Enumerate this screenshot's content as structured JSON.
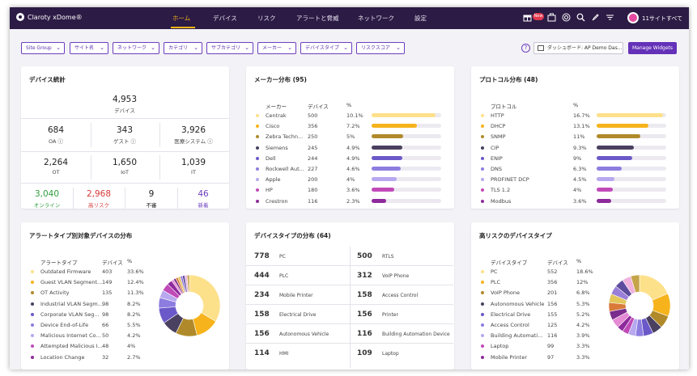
{
  "nav": {
    "logo": "Claroty xDome®",
    "menu": [
      "ホーム",
      "デバイス",
      "リスク",
      "アラートと脅威",
      "ネットワーク",
      "設定"
    ],
    "new_badge": "New",
    "site_label": "11サイトすべて"
  },
  "filters": {
    "chips": [
      "Site Group",
      "サイト名",
      "ネットワーク",
      "カテゴリ",
      "サブカテゴリ",
      "メーカー",
      "デバイスタイプ",
      "リスクスコア"
    ],
    "dashboard_label": "ダッシュボード: AP Demo Das...",
    "manage_widgets": "Manage Widgets"
  },
  "device_stats": {
    "title": "デバイス統計",
    "total": {
      "value": "4,953",
      "label": "デバイス"
    },
    "row1": [
      {
        "value": "684",
        "label": "OA"
      },
      {
        "value": "343",
        "label": "ゲスト"
      },
      {
        "value": "3,926",
        "label": "医療システム"
      }
    ],
    "row2": [
      {
        "value": "2,264",
        "label": "OT"
      },
      {
        "value": "1,650",
        "label": "IoT"
      },
      {
        "value": "1,039",
        "label": "IT"
      }
    ],
    "row3": [
      {
        "value": "3,040",
        "label": "オンライン",
        "color": "#2e9e3f"
      },
      {
        "value": "2,968",
        "label": "高リスク",
        "color": "#d63a3a"
      },
      {
        "value": "9",
        "label": "不審",
        "color": "#222222"
      },
      {
        "value": "46",
        "label": "新着",
        "color": "#6d3fc0"
      }
    ]
  },
  "vendor": {
    "title": "メーカー分布 (95)",
    "headers": [
      "メーカー",
      "デバイス",
      "%"
    ],
    "rows": [
      {
        "name": "Centrak",
        "count": "500",
        "pct": "10.1%",
        "value": 10.1,
        "color": "#fde08a"
      },
      {
        "name": "Cisco",
        "count": "356",
        "pct": "7.2%",
        "value": 7.2,
        "color": "#f6b31b"
      },
      {
        "name": "Zebra Techn...",
        "count": "250",
        "pct": "5%",
        "value": 5,
        "color": "#b08a2a"
      },
      {
        "name": "Siemens",
        "count": "245",
        "pct": "4.9%",
        "value": 4.9,
        "color": "#4a4060"
      },
      {
        "name": "Dell",
        "count": "244",
        "pct": "4.9%",
        "value": 4.9,
        "color": "#6b59c9"
      },
      {
        "name": "Rockwell Aut...",
        "count": "227",
        "pct": "4.6%",
        "value": 4.6,
        "color": "#8d7de0"
      },
      {
        "name": "Apple",
        "count": "200",
        "pct": "4%",
        "value": 4,
        "color": "#b7a8ef"
      },
      {
        "name": "HP",
        "count": "180",
        "pct": "3.6%",
        "value": 3.6,
        "color": "#c04ab8"
      },
      {
        "name": "Crestron",
        "count": "116",
        "pct": "2.3%",
        "value": 2.3,
        "color": "#8e2a9c"
      }
    ]
  },
  "protocol": {
    "title": "プロトコル分布 (48)",
    "headers": [
      "プロトコル",
      "%"
    ],
    "rows": [
      {
        "name": "HTTP",
        "pct": "16.7%",
        "value": 16.7,
        "color": "#fde08a"
      },
      {
        "name": "DHCP",
        "pct": "13.1%",
        "value": 13.1,
        "color": "#f6b31b"
      },
      {
        "name": "SNMP",
        "pct": "11%",
        "value": 11,
        "color": "#b08a2a"
      },
      {
        "name": "CIP",
        "pct": "9.3%",
        "value": 9.3,
        "color": "#4a4060"
      },
      {
        "name": "ENIP",
        "pct": "9%",
        "value": 9,
        "color": "#6b59c9"
      },
      {
        "name": "DNS",
        "pct": "6.3%",
        "value": 6.3,
        "color": "#8d7de0"
      },
      {
        "name": "PROFINET DCP",
        "pct": "4.5%",
        "value": 4.5,
        "color": "#b7a8ef"
      },
      {
        "name": "TLS 1.2",
        "pct": "4%",
        "value": 4,
        "color": "#c04ab8"
      },
      {
        "name": "Modbus",
        "pct": "3.6%",
        "value": 3.6,
        "color": "#8e2a9c"
      }
    ]
  },
  "alerts": {
    "title": "アラートタイプ別対象デバイスの分布",
    "headers": [
      "アラートタイプ",
      "デバイス",
      "%"
    ],
    "rows": [
      {
        "name": "Outdated Firmware",
        "count": "403",
        "pct": "33.6%",
        "value": 33.6,
        "color": "#fde08a"
      },
      {
        "name": "Guest VLAN Segment...",
        "count": "149",
        "pct": "12.4%",
        "value": 12.4,
        "color": "#f6b31b"
      },
      {
        "name": "OT Activity",
        "count": "135",
        "pct": "11.3%",
        "value": 11.3,
        "color": "#b08a2a"
      },
      {
        "name": "Industrial VLAN Segm...",
        "count": "98",
        "pct": "8.2%",
        "value": 8.2,
        "color": "#4a4060"
      },
      {
        "name": "Corporate VLAN Seg...",
        "count": "98",
        "pct": "8.2%",
        "value": 8.2,
        "color": "#6b59c9"
      },
      {
        "name": "Device End-of-Life",
        "count": "66",
        "pct": "5.5%",
        "value": 5.5,
        "color": "#8d7de0"
      },
      {
        "name": "Malicious Internet Co...",
        "count": "50",
        "pct": "4.2%",
        "value": 4.2,
        "color": "#b7a8ef"
      },
      {
        "name": "Attempted Malicious I...",
        "count": "48",
        "pct": "4%",
        "value": 4,
        "color": "#c04ab8"
      },
      {
        "name": "Location Change",
        "count": "32",
        "pct": "2.7%",
        "value": 2.7,
        "color": "#8e2a9c"
      }
    ]
  },
  "device_types": {
    "title": "デバイスタイプの分布 (64)",
    "left": [
      {
        "count": "778",
        "label": "PC"
      },
      {
        "count": "444",
        "label": "PLC"
      },
      {
        "count": "234",
        "label": "Mobile Printer"
      },
      {
        "count": "158",
        "label": "Electrical Drive"
      },
      {
        "count": "156",
        "label": "Autonomous Vehicle"
      },
      {
        "count": "114",
        "label": "HMI"
      }
    ],
    "right": [
      {
        "count": "500",
        "label": "RTLS"
      },
      {
        "count": "312",
        "label": "VoIP Phone"
      },
      {
        "count": "158",
        "label": "Access Control"
      },
      {
        "count": "156",
        "label": "Printer"
      },
      {
        "count": "116",
        "label": "Building Automation Device"
      },
      {
        "count": "109",
        "label": "Laptop"
      }
    ]
  },
  "high_risk": {
    "title": "高リスクのデバイスタイプ",
    "headers": [
      "デバイスタイプ",
      "デバイス",
      "%"
    ],
    "rows": [
      {
        "name": "PC",
        "count": "552",
        "pct": "18.6%",
        "value": 18.6,
        "color": "#fde08a"
      },
      {
        "name": "PLC",
        "count": "356",
        "pct": "12%",
        "value": 12,
        "color": "#f6b31b"
      },
      {
        "name": "VoIP Phone",
        "count": "201",
        "pct": "6.8%",
        "value": 6.8,
        "color": "#b08a2a"
      },
      {
        "name": "Autonomous Vehicle",
        "count": "156",
        "pct": "5.3%",
        "value": 5.3,
        "color": "#4a4060"
      },
      {
        "name": "Electrical Drive",
        "count": "155",
        "pct": "5.2%",
        "value": 5.2,
        "color": "#6b59c9"
      },
      {
        "name": "Access Control",
        "count": "125",
        "pct": "4.2%",
        "value": 4.2,
        "color": "#8d7de0"
      },
      {
        "name": "Building Automati...",
        "count": "116",
        "pct": "3.9%",
        "value": 3.9,
        "color": "#b7a8ef"
      },
      {
        "name": "Laptop",
        "count": "99",
        "pct": "3.3%",
        "value": 3.3,
        "color": "#c04ab8"
      },
      {
        "name": "Mobile Printer",
        "count": "97",
        "pct": "3.3%",
        "value": 3.3,
        "color": "#8e2a9c"
      }
    ]
  }
}
